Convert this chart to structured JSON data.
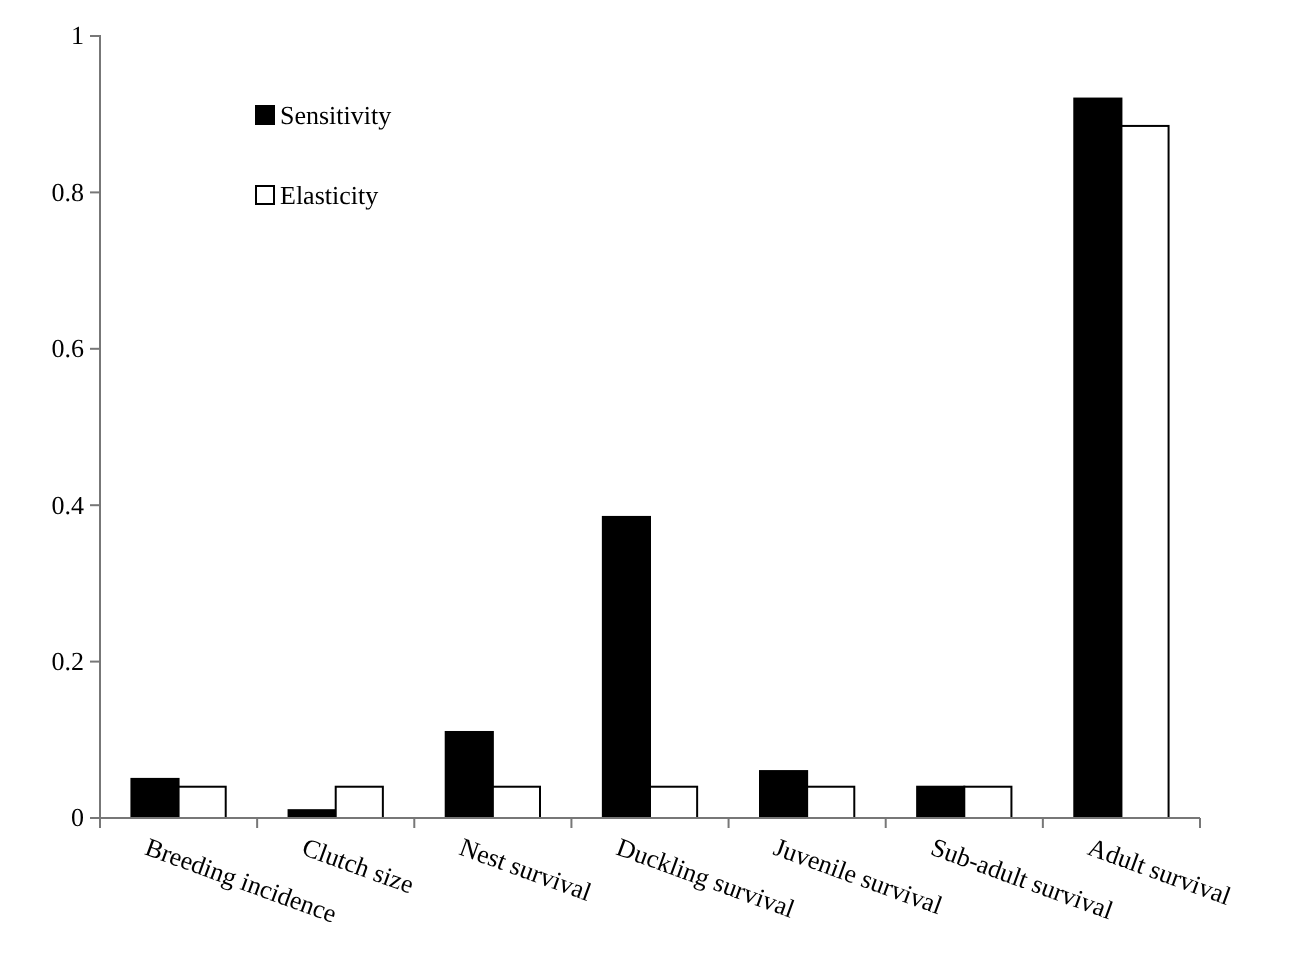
{
  "chart_data": {
    "type": "bar",
    "categories": [
      "Breeding incidence",
      "Clutch size",
      "Nest survival",
      "Duckling survival",
      "Juvenile survival",
      "Sub-adult survival",
      "Adult survival"
    ],
    "series": [
      {
        "name": "Sensitivity",
        "color": "#000000",
        "values": [
          0.05,
          0.01,
          0.11,
          0.385,
          0.06,
          0.04,
          0.92
        ]
      },
      {
        "name": "Elasticity",
        "color": "#ffffff",
        "values": [
          0.04,
          0.04,
          0.04,
          0.04,
          0.04,
          0.04,
          0.885
        ]
      }
    ],
    "ylim": [
      0,
      1
    ],
    "yticks": [
      0,
      0.2,
      0.4,
      0.6,
      0.8,
      1
    ],
    "grid": false,
    "legend": "top left"
  }
}
